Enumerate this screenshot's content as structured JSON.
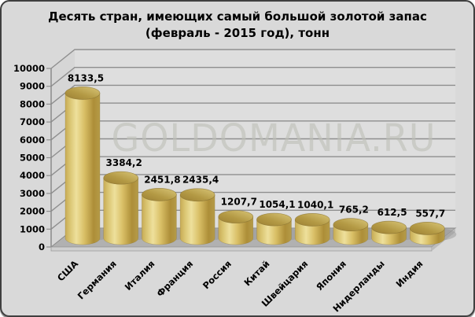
{
  "title": {
    "line1": "Десять стран, имеющих самый большой золотой запас",
    "line2": "(февраль - 2015 год), тонн"
  },
  "watermark": "GOLDOMANIA.RU",
  "chart_data": {
    "type": "bar",
    "subtype": "3d-cylinder",
    "title": "Десять стран, имеющих самый большой золотой запас (февраль - 2015 год), тонн",
    "categories": [
      "США",
      "Германия",
      "Италия",
      "Франция",
      "Россия",
      "Китай",
      "Швейцария",
      "Япония",
      "Нидерланды",
      "Индия"
    ],
    "values": [
      8133.5,
      3384.2,
      2451.8,
      2435.4,
      1207.7,
      1054.1,
      1040.1,
      765.2,
      612.5,
      557.7
    ],
    "value_labels": [
      "8133,5",
      "3384,2",
      "2451,8",
      "2435,4",
      "1207,7",
      "1054,1",
      "1040,1",
      "765,2",
      "612,5",
      "557,7"
    ],
    "xlabel": "",
    "ylabel": "",
    "ylim": [
      0,
      10000
    ],
    "ytick_step": 1000,
    "yticks": [
      "0",
      "1000",
      "2000",
      "3000",
      "4000",
      "5000",
      "6000",
      "7000",
      "8000",
      "9000",
      "10000"
    ],
    "grid": true,
    "legend": false,
    "colors": {
      "page_bg": "#d9d9d9",
      "border": "#3f3f3f",
      "wall": "#dedede",
      "side_wall": "#d6d6d6",
      "floor": "#b1b1b1",
      "floor_front": "#cfcfcf",
      "floor_right": "#bcbcbc",
      "gridline": "#8f8f8f",
      "axis": "#8a8a8a",
      "text": "#000000",
      "watermark": "#bfc0b8",
      "shadow": "#929292",
      "bar_edge": "#c7ab55",
      "bar_highlight": "#eee09c",
      "bar_mid": "#d9bf66",
      "bar_dark": "#ad8e38",
      "bar_top_dark": "#9c8034",
      "bar_top_light": "#d9c678",
      "bar_outline": "#8a7430"
    }
  }
}
